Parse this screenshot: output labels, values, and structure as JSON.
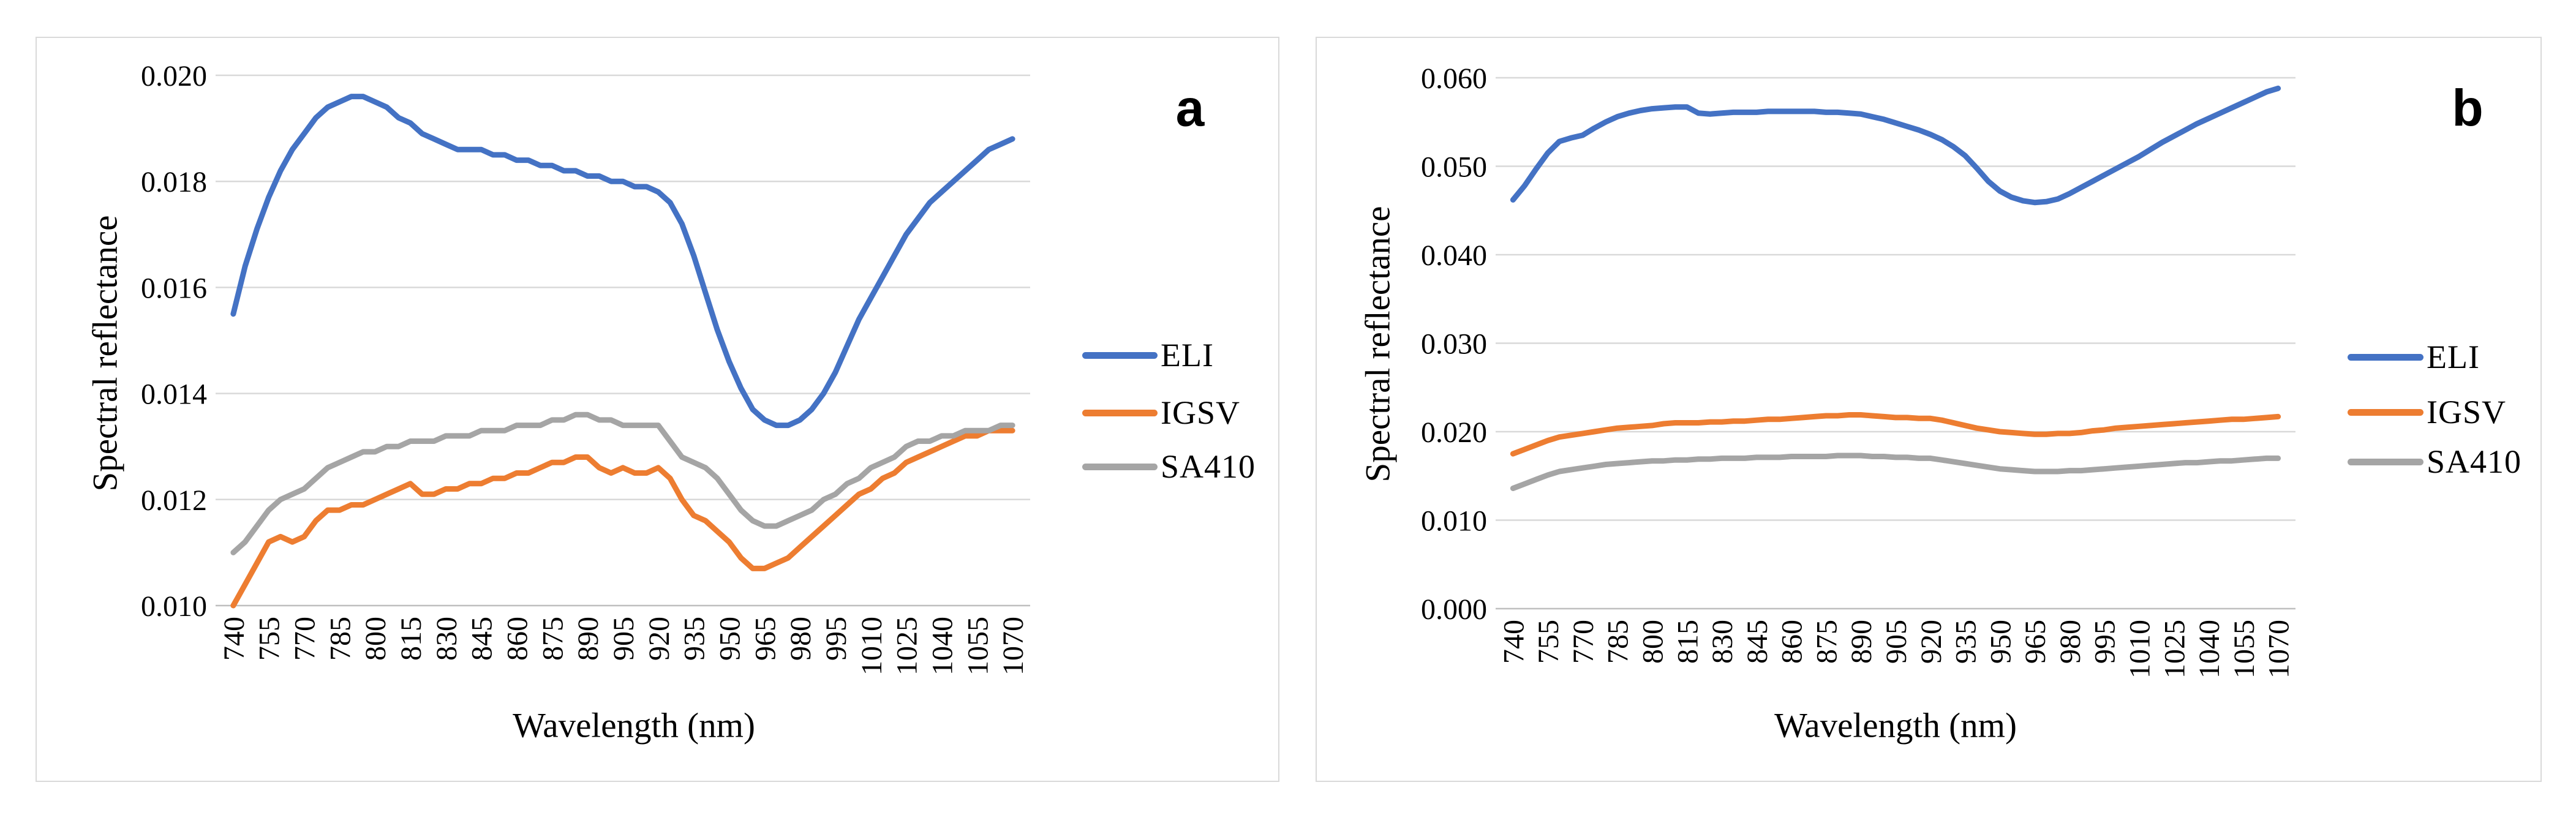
{
  "figure": {
    "background": "#ffffff",
    "panel_border_color": "#d9d9d9",
    "gridline_color": "#d9d9d9",
    "axis_line_color": "#bfbfbf",
    "text_color": "#000000"
  },
  "chart_data": [
    {
      "type": "line",
      "panel_label": "a",
      "xlabel": "Wavelength (nm)",
      "ylabel": "Spectral reflectance",
      "ylim": [
        0.01,
        0.02
      ],
      "y_ticks": [
        "0.020",
        "0.018",
        "0.016",
        "0.014",
        "0.012",
        "0.010"
      ],
      "x_ticks": [
        740,
        755,
        770,
        785,
        800,
        815,
        830,
        845,
        860,
        875,
        890,
        905,
        920,
        935,
        950,
        965,
        980,
        995,
        1010,
        1025,
        1040,
        1055,
        1070
      ],
      "grid": true,
      "legend_position": "right",
      "x_start": 740,
      "x_step": 5,
      "series": [
        {
          "name": "ELI",
          "color": "#4472C4",
          "values": [
            0.0155,
            0.0164,
            0.0171,
            0.0177,
            0.0182,
            0.0186,
            0.0189,
            0.0192,
            0.0194,
            0.0195,
            0.0196,
            0.0196,
            0.0195,
            0.0194,
            0.0192,
            0.0191,
            0.0189,
            0.0188,
            0.0187,
            0.0186,
            0.0186,
            0.0186,
            0.0185,
            0.0185,
            0.0184,
            0.0184,
            0.0183,
            0.0183,
            0.0182,
            0.0182,
            0.0181,
            0.0181,
            0.018,
            0.018,
            0.0179,
            0.0179,
            0.0178,
            0.0176,
            0.0172,
            0.0166,
            0.0159,
            0.0152,
            0.0146,
            0.0141,
            0.0137,
            0.0135,
            0.0134,
            0.0134,
            0.0135,
            0.0137,
            0.014,
            0.0144,
            0.0149,
            0.0154,
            0.0158,
            0.0162,
            0.0166,
            0.017,
            0.0173,
            0.0176,
            0.0178,
            0.018,
            0.0182,
            0.0184,
            0.0186,
            0.0187,
            0.0188
          ]
        },
        {
          "name": "IGSV",
          "color": "#ED7D31",
          "values": [
            0.01,
            0.0104,
            0.0108,
            0.0112,
            0.0113,
            0.0112,
            0.0113,
            0.0116,
            0.0118,
            0.0118,
            0.0119,
            0.0119,
            0.012,
            0.0121,
            0.0122,
            0.0123,
            0.0121,
            0.0121,
            0.0122,
            0.0122,
            0.0123,
            0.0123,
            0.0124,
            0.0124,
            0.0125,
            0.0125,
            0.0126,
            0.0127,
            0.0127,
            0.0128,
            0.0128,
            0.0126,
            0.0125,
            0.0126,
            0.0125,
            0.0125,
            0.0126,
            0.0124,
            0.012,
            0.0117,
            0.0116,
            0.0114,
            0.0112,
            0.0109,
            0.0107,
            0.0107,
            0.0108,
            0.0109,
            0.0111,
            0.0113,
            0.0115,
            0.0117,
            0.0119,
            0.0121,
            0.0122,
            0.0124,
            0.0125,
            0.0127,
            0.0128,
            0.0129,
            0.013,
            0.0131,
            0.0132,
            0.0132,
            0.0133,
            0.0133,
            0.0133
          ]
        },
        {
          "name": "SA410",
          "color": "#A5A5A5",
          "values": [
            0.011,
            0.0112,
            0.0115,
            0.0118,
            0.012,
            0.0121,
            0.0122,
            0.0124,
            0.0126,
            0.0127,
            0.0128,
            0.0129,
            0.0129,
            0.013,
            0.013,
            0.0131,
            0.0131,
            0.0131,
            0.0132,
            0.0132,
            0.0132,
            0.0133,
            0.0133,
            0.0133,
            0.0134,
            0.0134,
            0.0134,
            0.0135,
            0.0135,
            0.0136,
            0.0136,
            0.0135,
            0.0135,
            0.0134,
            0.0134,
            0.0134,
            0.0134,
            0.0131,
            0.0128,
            0.0127,
            0.0126,
            0.0124,
            0.0121,
            0.0118,
            0.0116,
            0.0115,
            0.0115,
            0.0116,
            0.0117,
            0.0118,
            0.012,
            0.0121,
            0.0123,
            0.0124,
            0.0126,
            0.0127,
            0.0128,
            0.013,
            0.0131,
            0.0131,
            0.0132,
            0.0132,
            0.0133,
            0.0133,
            0.0133,
            0.0134,
            0.0134
          ]
        }
      ]
    },
    {
      "type": "line",
      "panel_label": "b",
      "xlabel": "Wavelength (nm)",
      "ylabel": "Spectral reflectance",
      "ylim": [
        0.0,
        0.06
      ],
      "y_ticks": [
        "0.060",
        "0.050",
        "0.040",
        "0.030",
        "0.020",
        "0.010",
        "0.000"
      ],
      "x_ticks": [
        740,
        755,
        770,
        785,
        800,
        815,
        830,
        845,
        860,
        875,
        890,
        905,
        920,
        935,
        950,
        965,
        980,
        995,
        1010,
        1025,
        1040,
        1055,
        1070
      ],
      "grid": true,
      "legend_position": "right",
      "x_start": 740,
      "x_step": 5,
      "series": [
        {
          "name": "ELI",
          "color": "#4472C4",
          "values": [
            0.0462,
            0.0478,
            0.0497,
            0.0515,
            0.0528,
            0.0532,
            0.0535,
            0.0543,
            0.055,
            0.0556,
            0.056,
            0.0563,
            0.0565,
            0.0566,
            0.0567,
            0.0567,
            0.056,
            0.0559,
            0.056,
            0.0561,
            0.0561,
            0.0561,
            0.0562,
            0.0562,
            0.0562,
            0.0562,
            0.0562,
            0.0561,
            0.0561,
            0.056,
            0.0559,
            0.0556,
            0.0553,
            0.0549,
            0.0545,
            0.0541,
            0.0536,
            0.053,
            0.0522,
            0.0512,
            0.0498,
            0.0483,
            0.0472,
            0.0465,
            0.0461,
            0.0459,
            0.046,
            0.0463,
            0.0469,
            0.0476,
            0.0483,
            0.049,
            0.0497,
            0.0504,
            0.0511,
            0.0519,
            0.0527,
            0.0534,
            0.0541,
            0.0548,
            0.0554,
            0.056,
            0.0566,
            0.0572,
            0.0578,
            0.0584,
            0.0588
          ]
        },
        {
          "name": "IGSV",
          "color": "#ED7D31",
          "values": [
            0.0175,
            0.018,
            0.0185,
            0.019,
            0.0194,
            0.0196,
            0.0198,
            0.02,
            0.0202,
            0.0204,
            0.0205,
            0.0206,
            0.0207,
            0.0209,
            0.021,
            0.021,
            0.021,
            0.0211,
            0.0211,
            0.0212,
            0.0212,
            0.0213,
            0.0214,
            0.0214,
            0.0215,
            0.0216,
            0.0217,
            0.0218,
            0.0218,
            0.0219,
            0.0219,
            0.0218,
            0.0217,
            0.0216,
            0.0216,
            0.0215,
            0.0215,
            0.0213,
            0.021,
            0.0207,
            0.0204,
            0.0202,
            0.02,
            0.0199,
            0.0198,
            0.0197,
            0.0197,
            0.0198,
            0.0198,
            0.0199,
            0.0201,
            0.0202,
            0.0204,
            0.0205,
            0.0206,
            0.0207,
            0.0208,
            0.0209,
            0.021,
            0.0211,
            0.0212,
            0.0213,
            0.0214,
            0.0214,
            0.0215,
            0.0216,
            0.0217
          ]
        },
        {
          "name": "SA410",
          "color": "#A5A5A5",
          "values": [
            0.0136,
            0.0141,
            0.0146,
            0.0151,
            0.0155,
            0.0157,
            0.0159,
            0.0161,
            0.0163,
            0.0164,
            0.0165,
            0.0166,
            0.0167,
            0.0167,
            0.0168,
            0.0168,
            0.0169,
            0.0169,
            0.017,
            0.017,
            0.017,
            0.0171,
            0.0171,
            0.0171,
            0.0172,
            0.0172,
            0.0172,
            0.0172,
            0.0173,
            0.0173,
            0.0173,
            0.0172,
            0.0172,
            0.0171,
            0.0171,
            0.017,
            0.017,
            0.0168,
            0.0166,
            0.0164,
            0.0162,
            0.016,
            0.0158,
            0.0157,
            0.0156,
            0.0155,
            0.0155,
            0.0155,
            0.0156,
            0.0156,
            0.0157,
            0.0158,
            0.0159,
            0.016,
            0.0161,
            0.0162,
            0.0163,
            0.0164,
            0.0165,
            0.0165,
            0.0166,
            0.0167,
            0.0167,
            0.0168,
            0.0169,
            0.017,
            0.017
          ]
        }
      ]
    }
  ]
}
